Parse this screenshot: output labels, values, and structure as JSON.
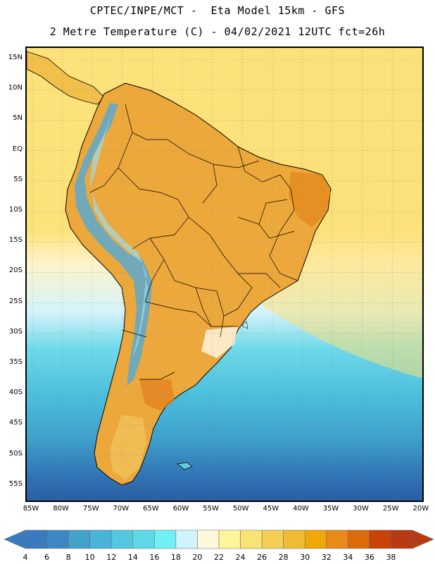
{
  "header": {
    "line1": "CPTEC/INPE/MCT -  Eta Model 15km - GFS",
    "line2": "2 Metre Temperature (C) - 04/02/2021 12UTC fct=26h"
  },
  "map": {
    "lat_labels": [
      "15N",
      "10N",
      "5N",
      "EQ",
      "5S",
      "10S",
      "15S",
      "20S",
      "25S",
      "30S",
      "35S",
      "40S",
      "45S",
      "50S",
      "55S"
    ],
    "lon_labels": [
      "85W",
      "80W",
      "75W",
      "70W",
      "65W",
      "60W",
      "55W",
      "50W",
      "45W",
      "40W",
      "35W",
      "30W",
      "25W",
      "20W"
    ],
    "grid": "dotted"
  },
  "colorbar": {
    "labels": [
      "4",
      "6",
      "8",
      "10",
      "12",
      "14",
      "16",
      "18",
      "20",
      "22",
      "24",
      "26",
      "28",
      "30",
      "32",
      "34",
      "36",
      "38"
    ],
    "colors": [
      "#3a7bbf",
      "#3d88c4",
      "#42a2ca",
      "#48b4d8",
      "#52c7df",
      "#5dd8e6",
      "#6ef0f4",
      "#d0f4fb",
      "#fff8dd",
      "#fff59a",
      "#fbe373",
      "#f3cf52",
      "#eebb32",
      "#f0a808",
      "#e88a18",
      "#dd6a0a",
      "#c8420a",
      "#b83a12"
    ]
  },
  "palette": {
    "ocean_cold": "#2d62a5",
    "ocean_mid": "#4fc5de",
    "ocean_warm": "#fde27a",
    "land": "#eca53a",
    "andes": "#5aa9cf"
  }
}
